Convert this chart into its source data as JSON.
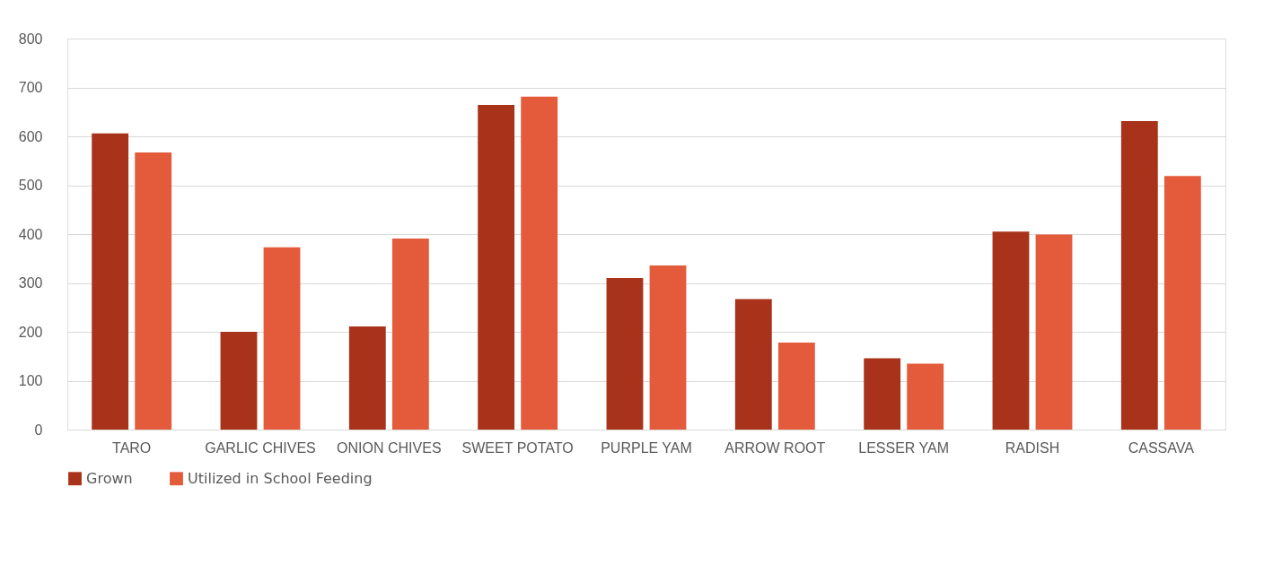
{
  "chart_data": {
    "type": "bar",
    "categories": [
      "TARO",
      "GARLIC CHIVES",
      "ONION CHIVES",
      "SWEET POTATO",
      "PURPLE YAM",
      "ARROW ROOT",
      "LESSER YAM",
      "RADISH",
      "CASSAVA"
    ],
    "series": [
      {
        "name": "Grown",
        "color": "#a8321a",
        "values": [
          606,
          200,
          211,
          664,
          310,
          267,
          146,
          405,
          631
        ]
      },
      {
        "name": "Utilized in School Feeding",
        "color": "#e35b3b",
        "values": [
          567,
          373,
          391,
          681,
          336,
          178,
          135,
          399,
          519
        ]
      }
    ],
    "ylim": [
      0,
      800
    ],
    "yticks": [
      0,
      100,
      200,
      300,
      400,
      500,
      600,
      700,
      800
    ],
    "grid": "y",
    "legend": "bottom"
  }
}
